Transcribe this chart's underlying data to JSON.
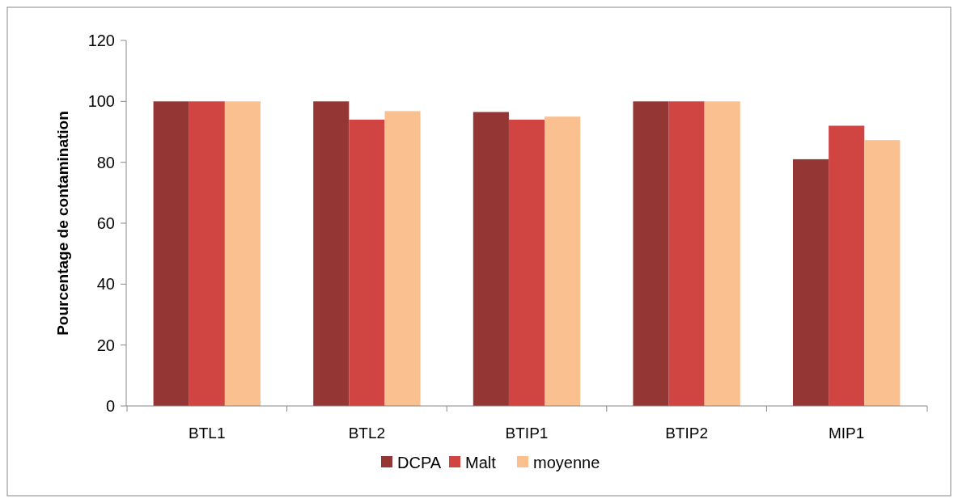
{
  "chart_data": {
    "type": "bar",
    "ylabel": "Pourcentage de contamination",
    "categories": [
      "BTL1",
      "BTL2",
      "BTIP1",
      "BTIP2",
      "MIP1"
    ],
    "series": [
      {
        "name": "DCPA",
        "color": "#943634",
        "values": [
          100,
          100,
          96.5,
          100,
          81
        ]
      },
      {
        "name": "Malt",
        "color": "#d04442",
        "values": [
          100,
          94,
          94,
          100,
          92
        ]
      },
      {
        "name": "moyenne",
        "color": "#fac090",
        "values": [
          100,
          96.8,
          95,
          100,
          87.3
        ]
      }
    ],
    "ylim": [
      0,
      120
    ],
    "yticks": [
      0,
      20,
      40,
      60,
      80,
      100,
      120
    ],
    "grid": false,
    "legend": "bottom"
  }
}
